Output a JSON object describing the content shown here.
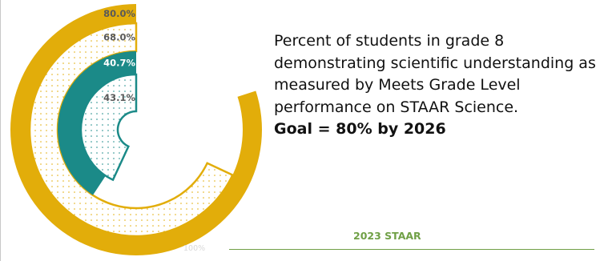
{
  "chart_data": {
    "type": "radial-bar",
    "series": [
      {
        "ring": "outer",
        "values": [
          80.0,
          68.0
        ],
        "labels": [
          "80.0%",
          "68.0%"
        ]
      },
      {
        "ring": "inner",
        "values": [
          40.7,
          43.1
        ],
        "labels": [
          "40.7%",
          "43.1%"
        ]
      }
    ],
    "scale_max_label": "100%",
    "year_label": "2023 STAAR"
  },
  "description": {
    "text": "Percent of students in grade 8 demonstrating scientific understanding as measured by Meets Grade Level performance on STAAR Science.",
    "goal": "Goal = 80% by 2026"
  },
  "colors": {
    "gold": "#e2ad0a",
    "teal": "#1b8a88",
    "green": "#70a046",
    "label_dark": "#595959",
    "gold_dot": "#e2ad0a",
    "teal_dot": "#1b8a88"
  }
}
